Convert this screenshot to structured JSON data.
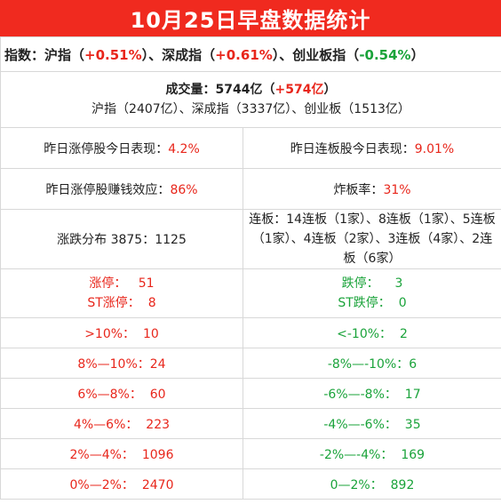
{
  "title": "10月25日早盘数据统计",
  "index_row": {
    "label": "指数：",
    "sh_name": "沪指（",
    "sh_val": "+0.51%",
    "sh_close": "）、",
    "sz_name": "深成指（",
    "sz_val": "+0.61%",
    "sz_close": "）、",
    "cy_name": "创业板指（",
    "cy_val": "-0.54%",
    "cy_close": "）"
  },
  "volume_row": {
    "label": "成交量：5744亿（",
    "delta": "+574亿",
    "close": "）",
    "breakdown": "沪指（2407亿）、深成指（3337亿）、创业板（1513亿）"
  },
  "performance": {
    "zt_label": "昨日涨停股今日表现：",
    "zt_val": "4.2%",
    "lb_label": "昨日连板股今日表现：",
    "lb_val": "9.01%"
  },
  "effect": {
    "earn_label": "昨日涨停股赚钱效应：",
    "earn_val": "86%",
    "zhaban_label": "炸板率：",
    "zhaban_val": "31%"
  },
  "distribution": {
    "label": "涨跌分布 3875：1125",
    "lianban_text": "连板：14连板（1家）、8连板（1家）、5连板（1家）、4连板（2家）、3连板（4家）、2连板（6家）"
  },
  "limits": {
    "up_label": "涨停：",
    "up_val": "51",
    "st_up_label": "ST涨停：",
    "st_up_val": "8",
    "down_label": "跌停：",
    "down_val": "3",
    "st_down_label": "ST跌停：",
    "st_down_val": "0"
  },
  "buckets_up": [
    {
      "label": ">10%：",
      "val": "10"
    },
    {
      "label": "8%—10%：",
      "val": "24"
    },
    {
      "label": "6%—8%：",
      "val": "60"
    },
    {
      "label": "4%—6%：",
      "val": "223"
    },
    {
      "label": "2%—4%：",
      "val": "1096"
    },
    {
      "label": "0%—2%：",
      "val": "2470"
    }
  ],
  "buckets_down": [
    {
      "label": "<-10%：",
      "val": "2"
    },
    {
      "label": "-8%—-10%：",
      "val": "6"
    },
    {
      "label": "-6%—-8%：",
      "val": "17"
    },
    {
      "label": "-4%—-6%：",
      "val": "35"
    },
    {
      "label": "-2%—-4%：",
      "val": "169"
    },
    {
      "label": "0—2%：",
      "val": "892"
    }
  ],
  "colors": {
    "header_bg": "#f02a1f",
    "up": "#e8261b",
    "down": "#1aa33a",
    "border": "#d8d8d8"
  }
}
